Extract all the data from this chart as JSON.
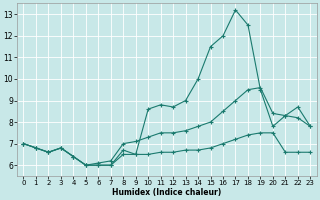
{
  "xlabel": "Humidex (Indice chaleur)",
  "xlim": [
    -0.5,
    23.5
  ],
  "ylim": [
    5.5,
    13.5
  ],
  "yticks": [
    6,
    7,
    8,
    9,
    10,
    11,
    12,
    13
  ],
  "xticks": [
    0,
    1,
    2,
    3,
    4,
    5,
    6,
    7,
    8,
    9,
    10,
    11,
    12,
    13,
    14,
    15,
    16,
    17,
    18,
    19,
    20,
    21,
    22,
    23
  ],
  "bg_color": "#c8e8e8",
  "line_color": "#1a7a6e",
  "grid_color": "#ffffff",
  "lines": [
    {
      "x": [
        0,
        1,
        2,
        3,
        4,
        5,
        6,
        7,
        8,
        9,
        10,
        11,
        12,
        13,
        14,
        15,
        16,
        17,
        18,
        19,
        20,
        21,
        22,
        23
      ],
      "y": [
        7.0,
        6.8,
        6.6,
        6.8,
        6.4,
        6.0,
        6.0,
        6.0,
        6.7,
        6.5,
        8.6,
        8.8,
        8.7,
        9.0,
        10.0,
        11.5,
        12.0,
        13.2,
        12.5,
        9.5,
        7.8,
        8.3,
        8.7,
        7.8
      ]
    },
    {
      "x": [
        0,
        1,
        2,
        3,
        4,
        5,
        6,
        7,
        8,
        9,
        10,
        11,
        12,
        13,
        14,
        15,
        16,
        17,
        18,
        19,
        20,
        21,
        22,
        23
      ],
      "y": [
        7.0,
        6.8,
        6.6,
        6.8,
        6.4,
        6.0,
        6.1,
        6.2,
        7.0,
        7.1,
        7.3,
        7.5,
        7.5,
        7.6,
        7.8,
        8.0,
        8.5,
        9.0,
        9.5,
        9.6,
        8.4,
        8.3,
        8.2,
        7.8
      ]
    },
    {
      "x": [
        0,
        1,
        2,
        3,
        4,
        5,
        6,
        7,
        8,
        9,
        10,
        11,
        12,
        13,
        14,
        15,
        16,
        17,
        18,
        19,
        20,
        21,
        22,
        23
      ],
      "y": [
        7.0,
        6.8,
        6.6,
        6.8,
        6.4,
        6.0,
        6.0,
        6.0,
        6.5,
        6.5,
        6.5,
        6.6,
        6.6,
        6.7,
        6.7,
        6.8,
        7.0,
        7.2,
        7.4,
        7.5,
        7.5,
        6.6,
        6.6,
        6.6
      ]
    }
  ]
}
